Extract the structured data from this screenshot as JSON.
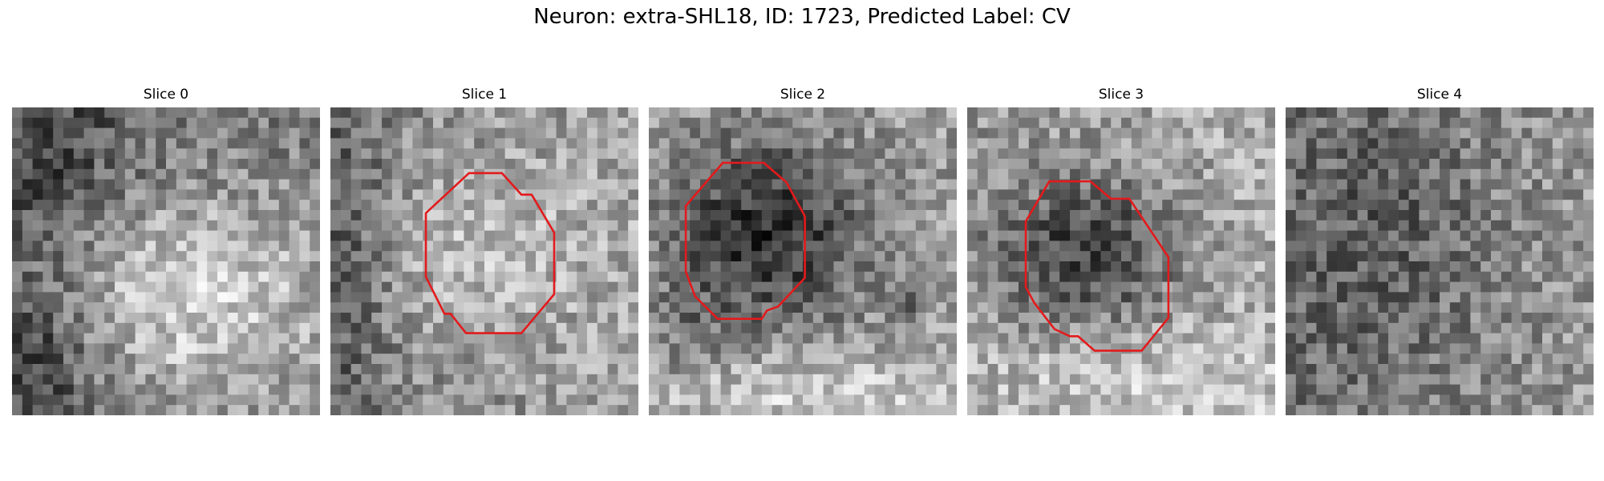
{
  "figure": {
    "title": "Neuron: extra-SHL18, ID: 1723, Predicted Label: CV",
    "contour_color": "#e31a1c",
    "grid_size": 30,
    "slices": [
      {
        "label": "Slice 0",
        "has_contour": false,
        "pattern": "bright-lower-right"
      },
      {
        "label": "Slice 1",
        "has_contour": true,
        "pattern": "mid-gray"
      },
      {
        "label": "Slice 2",
        "has_contour": true,
        "pattern": "dark-blob-center"
      },
      {
        "label": "Slice 3",
        "has_contour": true,
        "pattern": "dark-blob-upper-left"
      },
      {
        "label": "Slice 4",
        "has_contour": false,
        "pattern": "dark-noisy"
      }
    ]
  }
}
